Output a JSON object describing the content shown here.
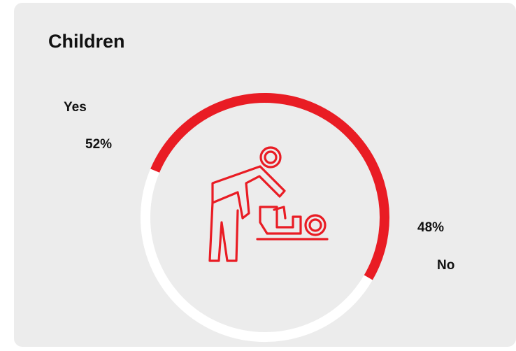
{
  "card": {
    "title": "Children"
  },
  "chart_data": {
    "type": "pie",
    "style": "donut",
    "title": "Children",
    "slices": [
      {
        "label": "Yes",
        "value": 52,
        "value_label": "52%",
        "color": "#e91c24"
      },
      {
        "label": "No",
        "value": 48,
        "value_label": "48%",
        "color": "#ffffff"
      }
    ],
    "center_icon": "parent-changing-baby-icon"
  }
}
